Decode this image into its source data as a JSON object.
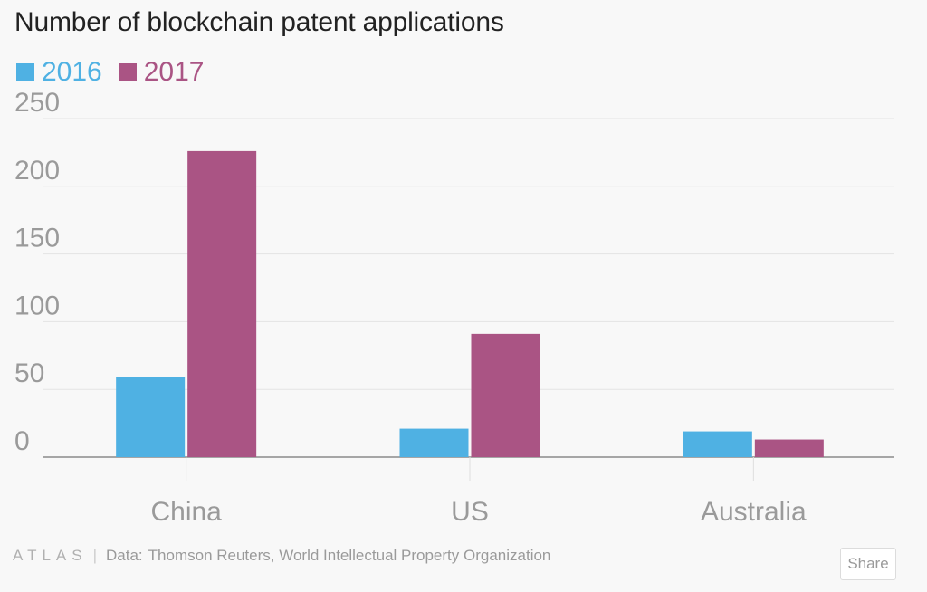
{
  "chart_data": {
    "type": "bar",
    "title": "Number of blockchain patent applications",
    "categories": [
      "China",
      "US",
      "Australia"
    ],
    "series": [
      {
        "name": "2016",
        "values": [
          59,
          21,
          19
        ],
        "color": "#4fb1e3"
      },
      {
        "name": "2017",
        "values": [
          226,
          91,
          13
        ],
        "color": "#aa5484"
      }
    ],
    "ylim": [
      0,
      250
    ],
    "yticks": [
      0,
      50,
      100,
      150,
      200,
      250
    ],
    "xlabel": "",
    "ylabel": "",
    "grid": true,
    "legend_position": "top-left"
  },
  "footer": {
    "logo": "ATLAS",
    "separator": "|",
    "data_prefix": "Data:",
    "source": "Thomson Reuters, World Intellectual Property Organization"
  },
  "share_label": "Share"
}
